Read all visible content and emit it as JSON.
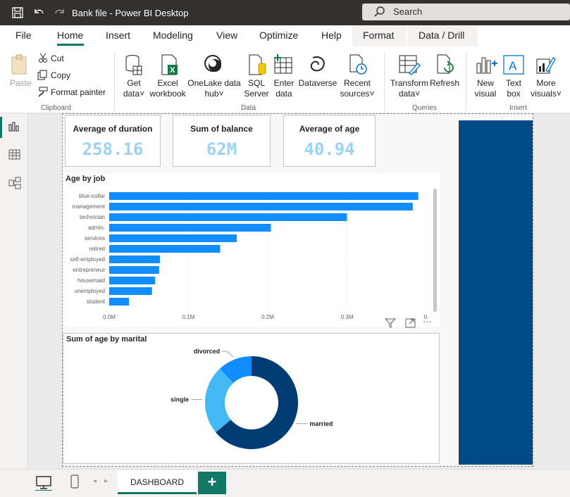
{
  "window": {
    "title": "Bank file - Power BI Desktop",
    "search_placeholder": "Search"
  },
  "menu": [
    "File",
    "Home",
    "Insert",
    "Modeling",
    "View",
    "Optimize",
    "Help",
    "Format",
    "Data / Drill"
  ],
  "ribbon": {
    "clipboard": {
      "paste": "Paste",
      "cut": "Cut",
      "copy": "Copy",
      "format_painter": "Format painter",
      "group": "Clipboard"
    },
    "data": {
      "get_data": [
        "Get",
        "data"
      ],
      "excel": [
        "Excel",
        "workbook"
      ],
      "onelake": [
        "OneLake data",
        "hub"
      ],
      "sql": [
        "SQL",
        "Server"
      ],
      "enter": [
        "Enter",
        "data"
      ],
      "dataverse": "Dataverse",
      "recent": [
        "Recent",
        "sources"
      ],
      "group": "Data"
    },
    "queries": {
      "transform": [
        "Transform",
        "data"
      ],
      "refresh": "Refresh",
      "group": "Queries"
    },
    "insert": {
      "new_visual": [
        "New",
        "visual"
      ],
      "text_box": [
        "Text",
        "box"
      ],
      "more_visuals": [
        "More",
        "visuals"
      ],
      "group": "Insert"
    }
  },
  "cards": [
    {
      "label": "Average of duration",
      "value": "258.16"
    },
    {
      "label": "Sum of balance",
      "value": "62M"
    },
    {
      "label": "Average of age",
      "value": "40.94"
    }
  ],
  "chart_data": [
    {
      "type": "bar",
      "title": "Age by job",
      "categories": [
        "blue-collar",
        "management",
        "technician",
        "admin.",
        "services",
        "retired",
        "self-employed",
        "entrepreneur",
        "housemaid",
        "unemployed",
        "student"
      ],
      "values": [
        390000,
        383000,
        300000,
        204000,
        161000,
        140000,
        64000,
        63000,
        58000,
        54000,
        25000
      ],
      "x_ticks": [
        "0.0M",
        "0.1M",
        "0.2M",
        "0.3M",
        "0."
      ],
      "xlim": [
        0,
        400000
      ],
      "color": "#118dff"
    },
    {
      "type": "pie",
      "title": "Sum of age by marital",
      "labels": [
        "married",
        "single",
        "divorced"
      ],
      "values": [
        64,
        24,
        12
      ],
      "colors": [
        "#003b73",
        "#42b8f5",
        "#118dff"
      ]
    }
  ],
  "pages": {
    "tab": "DASHBOARD",
    "add": "+"
  }
}
